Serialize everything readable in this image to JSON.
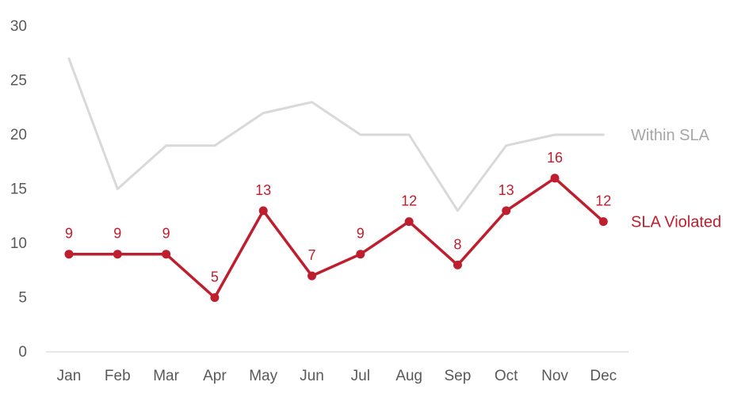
{
  "chart_data": {
    "type": "line",
    "categories": [
      "Jan",
      "Feb",
      "Mar",
      "Apr",
      "May",
      "Jun",
      "Jul",
      "Aug",
      "Sep",
      "Oct",
      "Nov",
      "Dec"
    ],
    "series": [
      {
        "name": "Within SLA",
        "values": [
          27,
          15,
          19,
          19,
          22,
          23,
          20,
          20,
          13,
          19,
          20,
          20
        ],
        "color": "#d9d9d9",
        "markers": false,
        "data_labels": false,
        "label_color": "#a6a6a6"
      },
      {
        "name": "SLA Violated",
        "values": [
          9,
          9,
          9,
          5,
          13,
          7,
          9,
          12,
          8,
          13,
          16,
          12
        ],
        "color": "#be1e2d",
        "markers": true,
        "data_labels": true,
        "label_color": "#be1e2d"
      }
    ],
    "title": "",
    "xlabel": "",
    "ylabel": "",
    "ylim": [
      0,
      30
    ],
    "yticks": [
      0,
      5,
      10,
      15,
      20,
      25,
      30
    ],
    "grid": false,
    "legend": "inline-right"
  }
}
